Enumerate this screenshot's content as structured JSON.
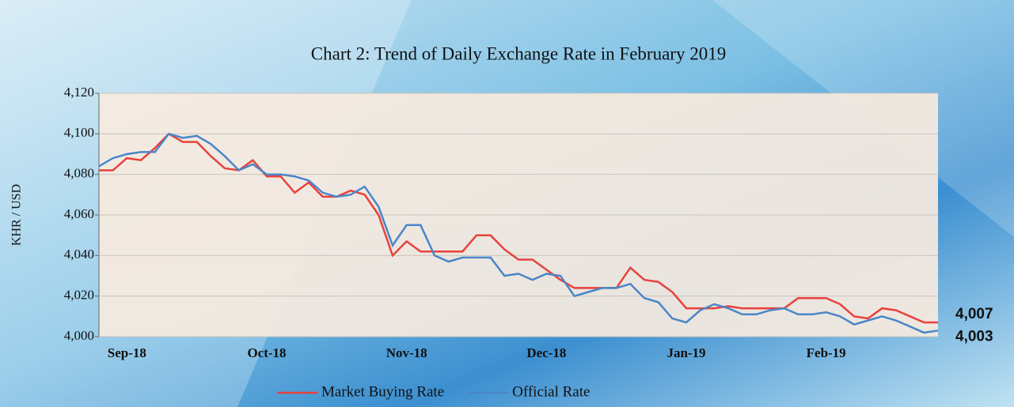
{
  "chart_data": {
    "type": "line",
    "title": "Chart 2: Trend of Daily Exchange Rate in February 2019",
    "y_label": "KHR / USD",
    "categories": [
      null,
      null,
      "Sep-18",
      null,
      null,
      null,
      null,
      null,
      null,
      null,
      null,
      null,
      "Oct-18",
      null,
      null,
      null,
      null,
      null,
      null,
      null,
      null,
      null,
      "Nov-18",
      null,
      null,
      null,
      null,
      null,
      null,
      null,
      null,
      null,
      "Dec-18",
      null,
      null,
      null,
      null,
      null,
      null,
      null,
      null,
      null,
      "Jan-19",
      null,
      null,
      null,
      null,
      null,
      null,
      null,
      null,
      null,
      "Feb-19",
      null,
      null,
      null,
      null,
      null,
      null,
      null,
      null
    ],
    "ylim": [
      4000,
      4120
    ],
    "yticks": [
      {
        "value": 4000,
        "label": "4,000"
      },
      {
        "value": 4020,
        "label": "4,020"
      },
      {
        "value": 4040,
        "label": "4,040"
      },
      {
        "value": 4060,
        "label": "4,060"
      },
      {
        "value": 4080,
        "label": "4,080"
      },
      {
        "value": 4100,
        "label": "4,100"
      },
      {
        "value": 4120,
        "label": "4,120"
      }
    ],
    "grid": true,
    "legend": "bottom",
    "series": [
      {
        "name": "Market Buying Rate",
        "color": "#e8413c",
        "values": [
          4082,
          4082,
          4088,
          4087,
          4093,
          4100,
          4096,
          4096,
          4089,
          4083,
          4082,
          4087,
          4079,
          4079,
          4071,
          4076,
          4069,
          4069,
          4072,
          4070,
          4060,
          4040,
          4047,
          4042,
          4042,
          4042,
          4042,
          4050,
          4050,
          4043,
          4038,
          4038,
          4033,
          4028,
          4024,
          4024,
          4024,
          4024,
          4034,
          4028,
          4027,
          4022,
          4014,
          4014,
          4014,
          4015,
          4014,
          4014,
          4014,
          4014,
          4019,
          4019,
          4019,
          4016,
          4010,
          4009,
          4014,
          4013,
          4010,
          4007,
          4007
        ],
        "value_labels": [
          null,
          null,
          null,
          null,
          null,
          null,
          null,
          null,
          null,
          null,
          null,
          null,
          null,
          null,
          null,
          null,
          null,
          null,
          null,
          null,
          null,
          null,
          null,
          null,
          null,
          null,
          null,
          null,
          null,
          null,
          null,
          null,
          null,
          null,
          null,
          null,
          null,
          null,
          null,
          null,
          null,
          null,
          null,
          null,
          null,
          null,
          null,
          null,
          null,
          null,
          null,
          null,
          null,
          null,
          null,
          null,
          null,
          null,
          null,
          null,
          "4,007"
        ]
      },
      {
        "name": "Official Rate",
        "color": "#4a86c8",
        "values": [
          4084,
          4088,
          4090,
          4091,
          4091,
          4100,
          4098,
          4099,
          4095,
          4089,
          4082,
          4085,
          4080,
          4080,
          4079,
          4077,
          4071,
          4069,
          4070,
          4074,
          4064,
          4045,
          4055,
          4055,
          4040,
          4037,
          4039,
          4039,
          4039,
          4030,
          4031,
          4028,
          4031,
          4030,
          4020,
          4022,
          4024,
          4024,
          4026,
          4019,
          4017,
          4009,
          4007,
          4013,
          4016,
          4014,
          4011,
          4011,
          4013,
          4014,
          4011,
          4011,
          4012,
          4010,
          4006,
          4008,
          4010,
          4008,
          4005,
          4002,
          4003
        ],
        "value_labels": [
          null,
          null,
          null,
          null,
          null,
          null,
          null,
          null,
          null,
          null,
          null,
          null,
          null,
          null,
          null,
          null,
          null,
          null,
          null,
          null,
          null,
          null,
          null,
          null,
          null,
          null,
          null,
          null,
          null,
          null,
          null,
          null,
          null,
          null,
          null,
          null,
          null,
          null,
          null,
          null,
          null,
          null,
          null,
          null,
          null,
          null,
          null,
          null,
          null,
          null,
          null,
          null,
          null,
          null,
          null,
          null,
          null,
          null,
          null,
          null,
          "4,003"
        ]
      }
    ]
  }
}
